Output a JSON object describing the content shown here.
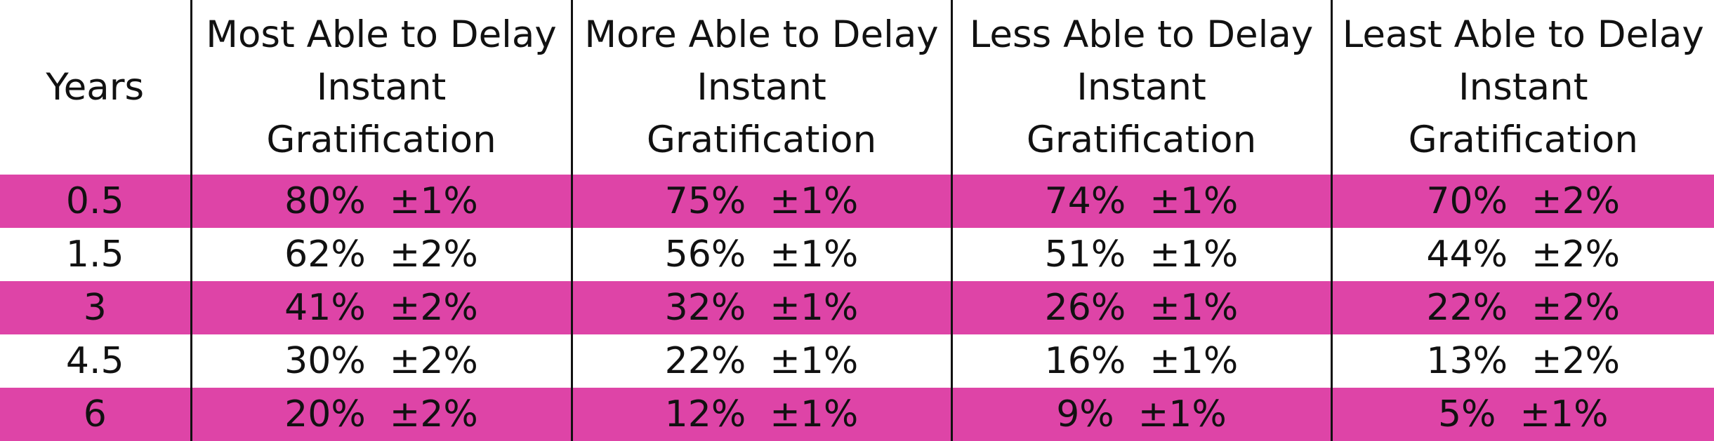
{
  "chart_data": {
    "type": "table",
    "accent_color": "#de44a7",
    "columns": [
      "Years",
      "Most Able to Delay Instant Gratification",
      "More Able to Delay Instant Gratification",
      "Less Able to Delay Instant Gratification",
      "Least Able to Delay Instant Gratification"
    ],
    "rows": [
      {
        "year": "0.5",
        "cells": [
          {
            "value": "80%",
            "error": "±1%"
          },
          {
            "value": "75%",
            "error": "±1%"
          },
          {
            "value": "74%",
            "error": "±1%"
          },
          {
            "value": "70%",
            "error": "±2%"
          }
        ]
      },
      {
        "year": "1.5",
        "cells": [
          {
            "value": "62%",
            "error": "±2%"
          },
          {
            "value": "56%",
            "error": "±1%"
          },
          {
            "value": "51%",
            "error": "±1%"
          },
          {
            "value": "44%",
            "error": "±2%"
          }
        ]
      },
      {
        "year": "3",
        "cells": [
          {
            "value": "41%",
            "error": "±2%"
          },
          {
            "value": "32%",
            "error": "±1%"
          },
          {
            "value": "26%",
            "error": "±1%"
          },
          {
            "value": "22%",
            "error": "±2%"
          }
        ]
      },
      {
        "year": "4.5",
        "cells": [
          {
            "value": "30%",
            "error": "±2%"
          },
          {
            "value": "22%",
            "error": "±1%"
          },
          {
            "value": "16%",
            "error": "±1%"
          },
          {
            "value": "13%",
            "error": "±2%"
          }
        ]
      },
      {
        "year": "6",
        "cells": [
          {
            "value": "20%",
            "error": "±2%"
          },
          {
            "value": "12%",
            "error": "±1%"
          },
          {
            "value": "9%",
            "error": "±1%"
          },
          {
            "value": "5%",
            "error": "±1%"
          }
        ]
      }
    ]
  }
}
